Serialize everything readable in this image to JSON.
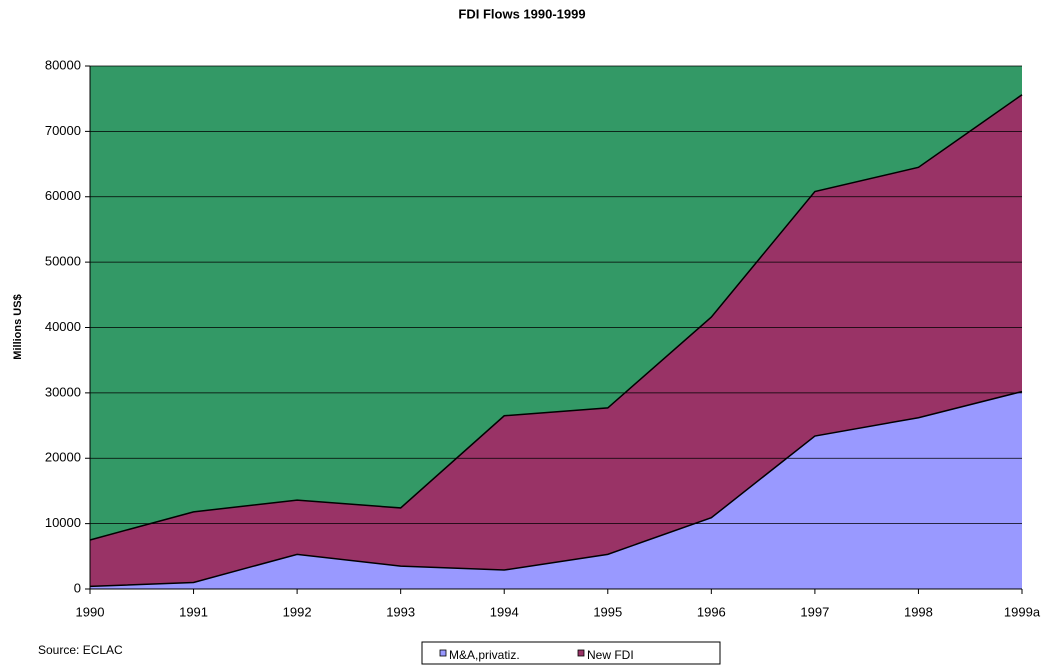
{
  "chart_data": {
    "type": "stacked_area",
    "title": "FDI  Flows 1990-1999",
    "y_label": "Millions US$",
    "source": "Source:  ECLAC",
    "categories": [
      "1990",
      "1991",
      "1992",
      "1993",
      "1994",
      "1995",
      "1996",
      "1997",
      "1998",
      "1999a"
    ],
    "series": [
      {
        "name": "M&A,privatiz.",
        "color": "#9999ff",
        "values": [
          400,
          1000,
          5300,
          3500,
          2900,
          5300,
          10900,
          23400,
          26200,
          30200
        ]
      },
      {
        "name": "New FDI",
        "color": "#993366",
        "values": [
          7100,
          10800,
          8300,
          8900,
          23600,
          22400,
          30700,
          37400,
          38300,
          45400
        ]
      }
    ],
    "plot_color": "#339966",
    "ylim": [
      0,
      80000
    ],
    "yticks": [
      0,
      10000,
      20000,
      30000,
      40000,
      50000,
      60000,
      70000,
      80000
    ],
    "grid": true
  }
}
